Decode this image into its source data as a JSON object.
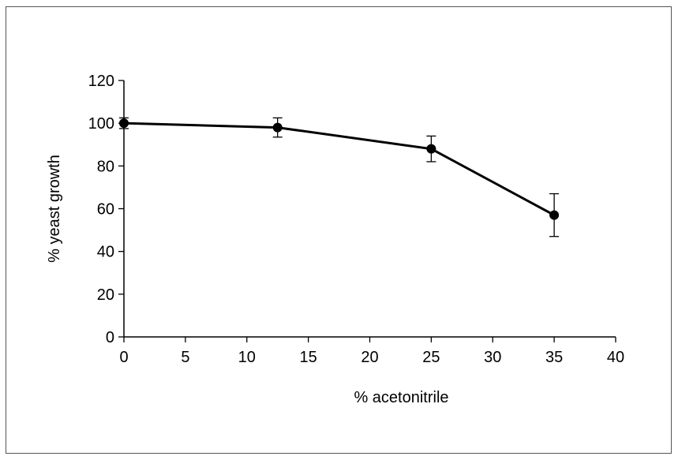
{
  "chart_data": {
    "type": "line",
    "title": "",
    "xlabel": "% acetonitrile",
    "ylabel": "% yeast growth",
    "xlim": [
      0,
      40
    ],
    "ylim": [
      0,
      120
    ],
    "x_ticks": [
      "0",
      "5",
      "10",
      "15",
      "20",
      "25",
      "30",
      "35",
      "40"
    ],
    "y_ticks": [
      "0",
      "20",
      "40",
      "60",
      "80",
      "100",
      "120"
    ],
    "grid": false,
    "legend": "none",
    "series": [
      {
        "x": [
          0,
          12.5,
          25,
          35
        ],
        "values": [
          100,
          98,
          88,
          57
        ],
        "error": [
          2.5,
          4.5,
          6,
          10
        ],
        "color": "#000000",
        "marker": "circle"
      }
    ]
  }
}
